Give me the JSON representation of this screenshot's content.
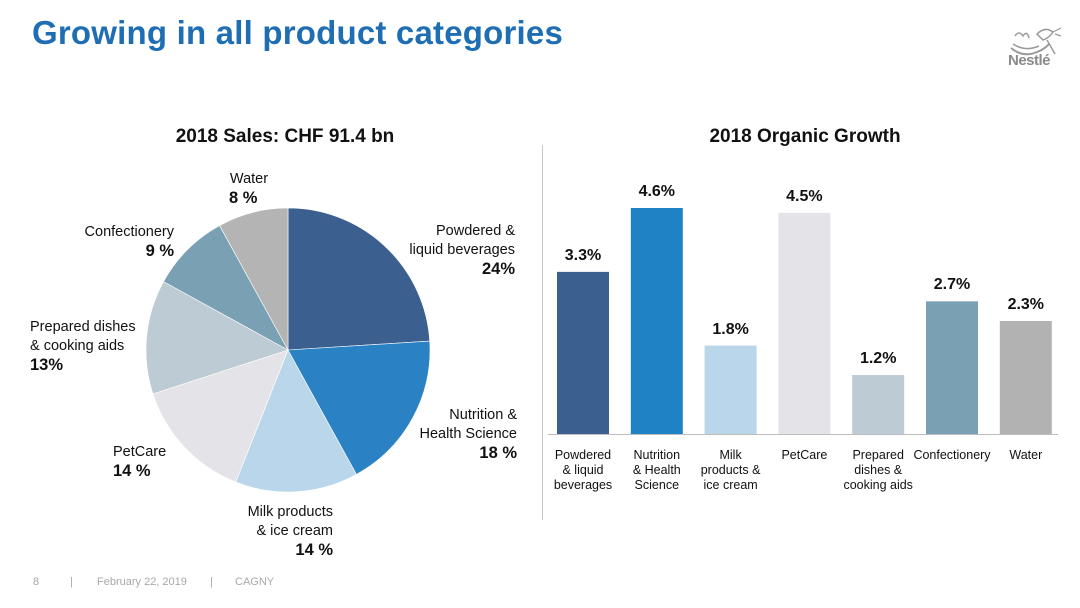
{
  "slide": {
    "title": "Growing in all product categories",
    "logo_text": "Nestlé",
    "footer": {
      "page": "8",
      "sep1": "|",
      "date": "February 22, 2019",
      "sep2": "|",
      "event": "CAGNY"
    }
  },
  "chart_data": [
    {
      "type": "pie",
      "title": "2018 Sales: CHF 91.4 bn",
      "slices": [
        {
          "label": "Powdered & liquid beverages",
          "label_lines": [
            "Powdered &",
            "liquid beverages"
          ],
          "value": 24,
          "value_text": "24%",
          "color": "#3b5f8e"
        },
        {
          "label": "Nutrition & Health Science",
          "label_lines": [
            "Nutrition &",
            "Health Science"
          ],
          "value": 18,
          "value_text": "18 %",
          "color": "#2a82c4"
        },
        {
          "label": "Milk products & ice cream",
          "label_lines": [
            "Milk products",
            "& ice cream"
          ],
          "value": 14,
          "value_text": "14 %",
          "color": "#b9d6ea"
        },
        {
          "label": "PetCare",
          "label_lines": [
            "PetCare"
          ],
          "value": 14,
          "value_text": "14 %",
          "color": "#e4e4e8"
        },
        {
          "label": "Prepared dishes & cooking aids",
          "label_lines": [
            "Prepared dishes",
            "& cooking aids"
          ],
          "value": 13,
          "value_text": "13%",
          "color": "#bccbd4"
        },
        {
          "label": "Confectionery",
          "label_lines": [
            "Confectionery"
          ],
          "value": 9,
          "value_text": "9 %",
          "color": "#7aa0b4"
        },
        {
          "label": "Water",
          "label_lines": [
            "Water"
          ],
          "value": 8,
          "value_text": "8 %",
          "color": "#b4b4b4"
        }
      ]
    },
    {
      "type": "bar",
      "title": "2018 Organic Growth",
      "categories": [
        "Powdered & liquid beverages",
        "Nutrition & Health Science",
        "Milk products & ice cream",
        "PetCare",
        "Prepared dishes & cooking aids",
        "Confectionery",
        "Water"
      ],
      "category_lines": [
        [
          "Powdered",
          "& liquid",
          "beverages"
        ],
        [
          "Nutrition",
          "& Health",
          "Science"
        ],
        [
          "Milk",
          "products &",
          "ice cream"
        ],
        [
          "PetCare"
        ],
        [
          "Prepared",
          "dishes &",
          "cooking aids"
        ],
        [
          "Confectionery"
        ],
        [
          "Water"
        ]
      ],
      "values": [
        3.3,
        4.6,
        1.8,
        4.5,
        1.2,
        2.7,
        2.3
      ],
      "value_labels": [
        "3.3%",
        "4.6%",
        "1.8%",
        "4.5%",
        "1.2%",
        "2.7%",
        "2.3%"
      ],
      "colors": [
        "#3b5f8e",
        "#1f82c4",
        "#b9d6ea",
        "#e4e4e8",
        "#bccbd4",
        "#7aa0b4",
        "#b2b2b2"
      ],
      "xlabel": "",
      "ylabel": "",
      "ylim": [
        0,
        4.6
      ],
      "grid": false
    }
  ]
}
